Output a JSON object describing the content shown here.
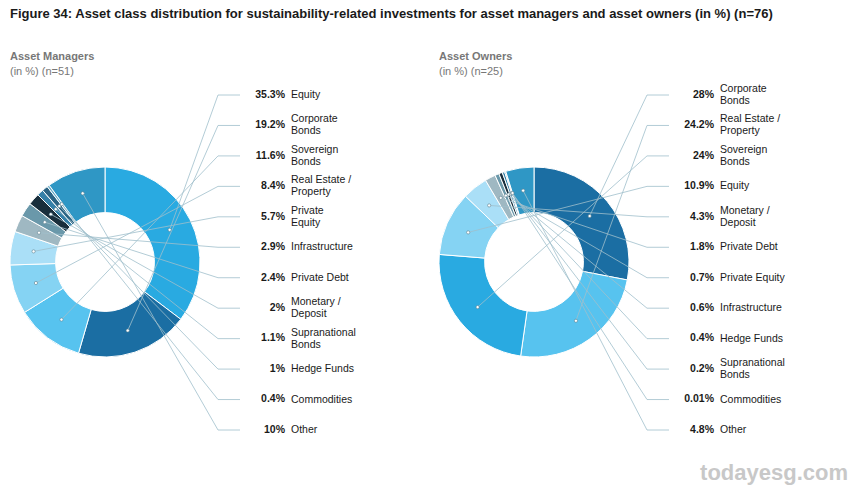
{
  "title": "Figure 34: Asset class distribution for sustainability-related investments for asset managers and asset owners (in %) (n=76)",
  "annotations": [
    "todayesg.com"
  ],
  "chart_data": [
    {
      "type": "donut",
      "title": "Asset Managers",
      "subtitle": "(in %) (n=51)",
      "categories": [
        "Equity",
        "Corporate\nBonds",
        "Sovereign\nBonds",
        "Real Estate /\nProperty",
        "Private\nEquity",
        "Infrastructure",
        "Private Debt",
        "Monetary /\nDeposit",
        "Supranational\nBonds",
        "Hedge Funds",
        "Commodities",
        "Other"
      ],
      "values": [
        35.3,
        19.2,
        11.6,
        8.4,
        5.7,
        2.9,
        2.4,
        2.0,
        1.1,
        1.0,
        0.4,
        10.0
      ],
      "value_labels": [
        "35.3%",
        "19.2%",
        "11.6%",
        "8.4%",
        "5.7%",
        "2.9%",
        "2.4%",
        "2%",
        "1.1%",
        "1%",
        "0.4%",
        "10%"
      ],
      "colors": [
        "#29aae1",
        "#1b6ea3",
        "#57c3ef",
        "#85d3f3",
        "#aadff7",
        "#9fb8c2",
        "#6a98aa",
        "#192e3c",
        "#3580a8",
        "#2b6484",
        "#6aadc9",
        "#2f97c5"
      ],
      "data_labels": true
    },
    {
      "type": "donut",
      "title": "Asset Owners",
      "subtitle": "(in %) (n=25)",
      "categories": [
        "Corporate\nBonds",
        "Real Estate /\nProperty",
        "Sovereign\nBonds",
        "Equity",
        "Monetary /\nDeposit",
        "Private Debt",
        "Private Equity",
        "Infrastructure",
        "Hedge Funds",
        "Supranational\nBonds",
        "Commodities",
        "Other"
      ],
      "values": [
        28.0,
        24.2,
        24.0,
        10.9,
        4.3,
        1.8,
        0.7,
        0.6,
        0.4,
        0.2,
        0.01,
        4.8
      ],
      "value_labels": [
        "28%",
        "24.2%",
        "24%",
        "10.9%",
        "4.3%",
        "1.8%",
        "0.7%",
        "0.6%",
        "0.4%",
        "0.2%",
        "0.01%",
        "4.8%"
      ],
      "colors": [
        "#1b6ea3",
        "#57c3ef",
        "#29aae1",
        "#85d3f3",
        "#aadff7",
        "#9fb8c2",
        "#6a98aa",
        "#192e3c",
        "#3580a8",
        "#2b6484",
        "#6aadc9",
        "#2f97c5"
      ],
      "data_labels": true
    }
  ]
}
